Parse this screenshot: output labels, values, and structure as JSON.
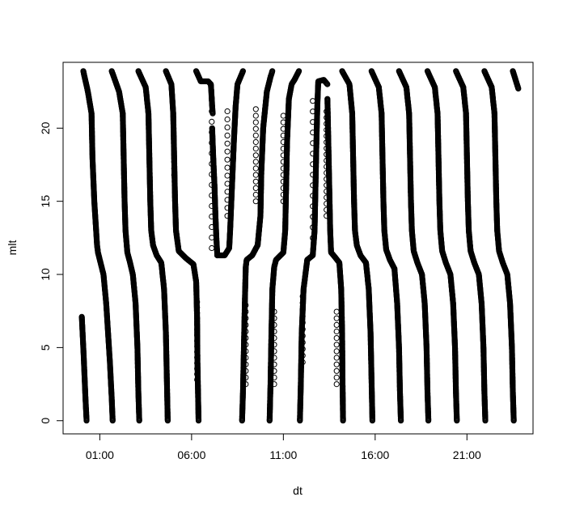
{
  "chart_data": {
    "type": "scatter",
    "title": "",
    "xlabel": "dt",
    "ylabel": "mlt",
    "xlim": [
      -1.0,
      24.6
    ],
    "ylim": [
      -0.9,
      24.5
    ],
    "x_ticks": [
      {
        "value": 1,
        "label": "01:00"
      },
      {
        "value": 6,
        "label": "06:00"
      },
      {
        "value": 11,
        "label": "11:00"
      },
      {
        "value": 16,
        "label": "16:00"
      },
      {
        "value": 21,
        "label": "21:00"
      }
    ],
    "y_ticks": [
      0,
      5,
      10,
      15,
      20
    ],
    "grid": false,
    "legend": "none",
    "marker": "open-circle",
    "color": "#000000",
    "series": [
      {
        "x": [
          0.02,
          0.12,
          0.22,
          0.28
        ],
        "y": [
          7.1,
          4.5,
          1.5,
          0.0
        ]
      },
      {
        "x": [
          0.1,
          0.35,
          0.55,
          0.6,
          0.7,
          0.8,
          0.85,
          0.9,
          1.0,
          1.2,
          1.35,
          1.45,
          1.55,
          1.65,
          1.7
        ],
        "y": [
          23.9,
          22.5,
          21.0,
          18.0,
          15.0,
          13.0,
          12.0,
          11.5,
          11.0,
          10.0,
          8.0,
          6.0,
          4.0,
          1.5,
          0.0
        ]
      },
      {
        "x": [
          1.65,
          2.05,
          2.25,
          2.3,
          2.35,
          2.4,
          2.5,
          2.65,
          2.8,
          2.95,
          3.05,
          3.1,
          3.15
        ],
        "y": [
          23.9,
          22.5,
          21.0,
          18.0,
          15.0,
          13.0,
          11.5,
          10.8,
          10.0,
          8.0,
          5.0,
          2.0,
          0.0
        ]
      },
      {
        "x": [
          3.1,
          3.5,
          3.65,
          3.7,
          3.75,
          3.8,
          3.9,
          4.1,
          4.35,
          4.5,
          4.6,
          4.65,
          4.7
        ],
        "y": [
          23.9,
          22.8,
          21.0,
          18.0,
          15.0,
          13.0,
          12.0,
          11.3,
          10.8,
          9.0,
          6.0,
          3.0,
          0.0
        ]
      },
      {
        "x": [
          4.6,
          4.9,
          5.0,
          5.05,
          5.1,
          5.15,
          5.3,
          5.7,
          6.1,
          6.25,
          6.3,
          6.32,
          6.35,
          6.38
        ],
        "y": [
          23.9,
          23.0,
          21.0,
          18.0,
          15.0,
          13.0,
          11.6,
          11.1,
          10.7,
          9.5,
          7.0,
          4.0,
          2.0,
          0.0
        ]
      },
      {
        "x": [
          6.25,
          6.5,
          6.9,
          7.05,
          7.1
        ],
        "y": [
          23.9,
          23.2,
          23.2,
          23.0,
          22.0
        ]
      },
      {
        "x": [
          7.12,
          7.18,
          7.25,
          7.3,
          7.35,
          7.4
        ],
        "y": [
          20.0,
          18.0,
          16.0,
          14.0,
          12.5,
          11.3
        ]
      },
      {
        "x": [
          7.1,
          7.12,
          7.15
        ],
        "y": [
          22.0,
          21.5,
          21.0
        ]
      },
      {
        "x": [
          7.4,
          7.8,
          8.05,
          8.1,
          8.2,
          8.3,
          8.4,
          8.5,
          8.8
        ],
        "y": [
          11.3,
          11.3,
          11.8,
          13.0,
          16.0,
          19.0,
          21.5,
          23.0,
          23.9
        ]
      },
      {
        "x": [
          8.75,
          8.8,
          8.85,
          8.9,
          8.95,
          9.0,
          9.3,
          9.6,
          9.75,
          9.8,
          9.9,
          10.1,
          10.3,
          10.4
        ],
        "y": [
          0.0,
          2.0,
          5.0,
          8.0,
          10.5,
          11.0,
          11.3,
          12.0,
          14.0,
          17.0,
          20.0,
          22.5,
          23.5,
          23.9
        ]
      },
      {
        "x": [
          10.25,
          10.3,
          10.35,
          10.4,
          10.5,
          10.6,
          11.0,
          11.1,
          11.15,
          11.2,
          11.3,
          11.45,
          11.6,
          11.85
        ],
        "y": [
          0.0,
          2.5,
          6.0,
          9.0,
          10.5,
          11.0,
          11.5,
          13.0,
          16.0,
          19.0,
          22.0,
          23.0,
          23.3,
          23.9
        ]
      },
      {
        "x": [
          11.9,
          11.95,
          12.0,
          12.1,
          12.3,
          12.6,
          12.7,
          12.75,
          12.8,
          12.85,
          12.9,
          13.2,
          13.4
        ],
        "y": [
          0.0,
          2.5,
          6.0,
          9.0,
          11.0,
          11.3,
          13.0,
          16.0,
          19.0,
          21.5,
          23.2,
          23.3,
          23.0
        ]
      },
      {
        "x": [
          13.4,
          13.45,
          13.5,
          13.55,
          13.6,
          13.8,
          14.05,
          14.15,
          14.2,
          14.22,
          14.25
        ],
        "y": [
          22.0,
          19.0,
          16.0,
          13.0,
          11.5,
          11.2,
          10.8,
          9.0,
          6.0,
          3.0,
          0.0
        ]
      },
      {
        "x": [
          14.2,
          14.6,
          14.75,
          14.8,
          14.85,
          14.9,
          15.0,
          15.2,
          15.5,
          15.65,
          15.75,
          15.8,
          15.85
        ],
        "y": [
          23.9,
          23.0,
          21.0,
          18.0,
          15.0,
          13.0,
          12.0,
          11.3,
          10.8,
          9.0,
          6.0,
          3.0,
          0.0
        ]
      },
      {
        "x": [
          15.8,
          16.2,
          16.35,
          16.4,
          16.45,
          16.5,
          16.6,
          16.8,
          17.05,
          17.2,
          17.3,
          17.35,
          17.4
        ],
        "y": [
          23.9,
          22.8,
          21.0,
          18.0,
          15.0,
          13.0,
          11.7,
          11.0,
          10.4,
          8.0,
          5.0,
          2.0,
          0.0
        ]
      },
      {
        "x": [
          17.3,
          17.7,
          17.85,
          17.9,
          17.95,
          18.0,
          18.1,
          18.3,
          18.55,
          18.7,
          18.8,
          18.85,
          18.9
        ],
        "y": [
          23.9,
          22.8,
          21.0,
          18.0,
          15.0,
          13.0,
          11.6,
          10.8,
          10.0,
          8.0,
          5.0,
          2.0,
          0.0
        ]
      },
      {
        "x": [
          18.85,
          19.25,
          19.4,
          19.45,
          19.5,
          19.55,
          19.65,
          19.85,
          20.1,
          20.25,
          20.35,
          20.4,
          20.45
        ],
        "y": [
          23.9,
          22.8,
          21.0,
          18.0,
          15.0,
          13.0,
          11.6,
          10.8,
          10.0,
          8.0,
          5.0,
          2.0,
          0.0
        ]
      },
      {
        "x": [
          20.4,
          20.8,
          20.95,
          21.0,
          21.05,
          21.1,
          21.2,
          21.4,
          21.65,
          21.8,
          21.9,
          21.95,
          22.0
        ],
        "y": [
          23.9,
          22.8,
          21.0,
          18.0,
          15.0,
          13.0,
          11.6,
          10.8,
          10.0,
          8.0,
          5.0,
          2.0,
          0.0
        ]
      },
      {
        "x": [
          21.95,
          22.35,
          22.5,
          22.55,
          22.6,
          22.65,
          22.75,
          22.95,
          23.2,
          23.35,
          23.45,
          23.5,
          23.55
        ],
        "y": [
          23.9,
          22.8,
          21.0,
          18.0,
          15.0,
          13.0,
          11.6,
          10.8,
          10.0,
          8.0,
          5.0,
          2.0,
          0.0
        ]
      },
      {
        "x": [
          23.5,
          23.65,
          23.8
        ],
        "y": [
          23.9,
          23.3,
          22.7
        ]
      }
    ],
    "sparse_columns": [
      {
        "x": 5.05,
        "y_min": 16.8,
        "y_max": 17.8,
        "step": 0.45
      },
      {
        "x": 6.3,
        "y_min": 2.8,
        "y_max": 8.3,
        "step": 0.38
      },
      {
        "x": 7.1,
        "y_min": 11.8,
        "y_max": 22.0,
        "step": 0.72
      },
      {
        "x": 7.95,
        "y_min": 14.0,
        "y_max": 21.5,
        "step": 0.55
      },
      {
        "x": 9.5,
        "y_min": 15.0,
        "y_max": 21.5,
        "step": 0.45
      },
      {
        "x": 8.95,
        "y_min": 2.5,
        "y_max": 8.0,
        "step": 0.45
      },
      {
        "x": 11.0,
        "y_min": 15.0,
        "y_max": 21.0,
        "step": 0.45
      },
      {
        "x": 10.5,
        "y_min": 2.5,
        "y_max": 7.5,
        "step": 0.45
      },
      {
        "x": 12.6,
        "y_min": 12.5,
        "y_max": 22.5,
        "step": 0.72
      },
      {
        "x": 13.35,
        "y_min": 14.0,
        "y_max": 21.5,
        "step": 0.42
      },
      {
        "x": 12.05,
        "y_min": 4.0,
        "y_max": 8.5,
        "step": 0.45
      },
      {
        "x": 13.9,
        "y_min": 2.5,
        "y_max": 7.5,
        "step": 0.45
      }
    ]
  }
}
